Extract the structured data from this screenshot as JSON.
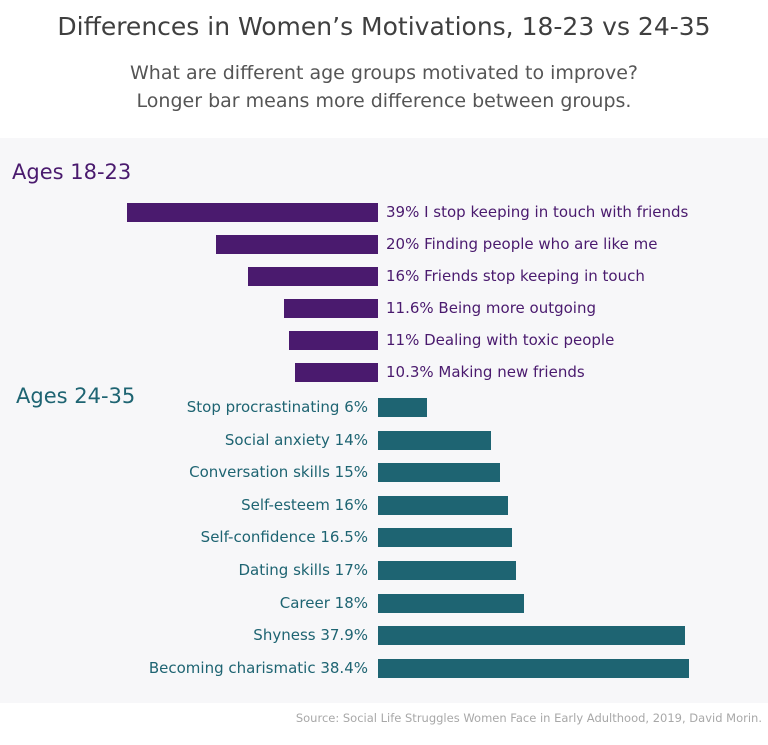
{
  "chart_data": {
    "type": "bar",
    "orientation": "horizontal",
    "title": "Differences in Women’s Motivations, 18-23 vs 24-35",
    "subtitle": [
      "What are different age groups motivated to improve?",
      "Longer bar means more difference between groups."
    ],
    "source": "Source: Social Life Struggles Women Face in Early Adulthood, 2019, David Morin.",
    "unit": "%",
    "groups": [
      {
        "name": "Ages 18-23",
        "color": "#4a1a6e",
        "direction": "left",
        "categories": [
          "I stop keeping in touch with friends",
          "Finding people who are like me",
          "Friends stop keeping in touch",
          "Being more outgoing",
          "Dealing with toxic people",
          "Making new friends"
        ],
        "values": [
          39,
          20,
          16,
          11.6,
          11,
          10.3
        ],
        "labels": [
          "39% I stop keeping in touch with friends",
          "20% Finding people who are like me",
          "16% Friends stop keeping in touch",
          "11.6% Being more outgoing",
          "11% Dealing with toxic people",
          "10.3% Making new friends"
        ]
      },
      {
        "name": "Ages 24-35",
        "color": "#1e6472",
        "direction": "right",
        "categories": [
          "Stop procrastinating",
          "Social anxiety",
          "Conversation skills",
          "Self-esteem",
          "Self-confidence",
          "Dating skills",
          "Career",
          "Shyness",
          "Becoming charismatic"
        ],
        "values": [
          6,
          14,
          15,
          16,
          16.5,
          17,
          18,
          37.9,
          38.4
        ],
        "labels": [
          "Stop procrastinating 6%",
          "Social anxiety 14%",
          "Conversation skills 15%",
          "Self-esteem 16%",
          "Self-confidence 16.5%",
          "Dating skills 17%",
          "Career 18%",
          "Shyness 37.9%",
          "Becoming charismatic 38.4%"
        ]
      }
    ],
    "grid": false
  }
}
